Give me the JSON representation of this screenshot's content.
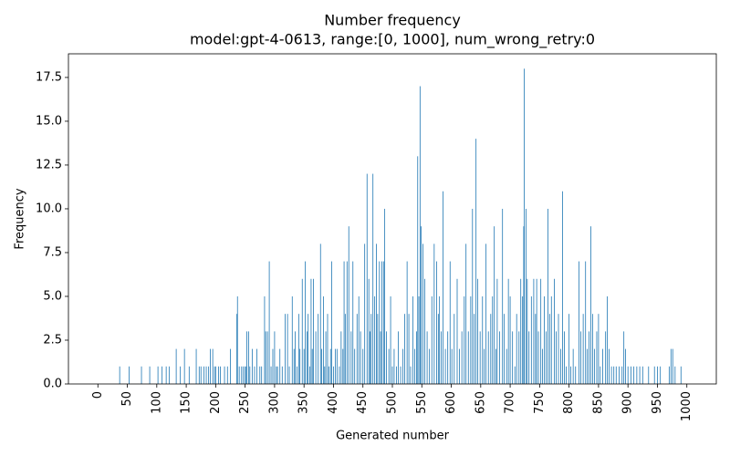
{
  "chart_data": {
    "type": "bar",
    "title": "Number frequency",
    "subtitle": "model:gpt-4-0613, range:[0, 1000], num_wrong_retry:0",
    "x_label": "Generated number",
    "y_label": "Frequency",
    "color": "#1f77b4",
    "x": [
      37,
      53,
      74,
      88,
      102,
      109,
      116,
      121,
      133,
      140,
      147,
      155,
      167,
      172,
      175,
      180,
      184,
      188,
      191,
      195,
      198,
      200,
      205,
      208,
      215,
      220,
      225,
      236,
      237,
      240,
      244,
      247,
      250,
      252,
      253,
      256,
      258,
      262,
      266,
      270,
      275,
      278,
      283,
      285,
      288,
      291,
      294,
      297,
      300,
      303,
      305,
      309,
      313,
      318,
      322,
      325,
      330,
      333,
      335,
      338,
      341,
      343,
      347,
      350,
      352,
      355,
      357,
      360,
      362,
      364,
      366,
      370,
      374,
      378,
      380,
      383,
      385,
      387,
      390,
      392,
      395,
      397,
      400,
      403,
      406,
      410,
      413,
      416,
      418,
      420,
      423,
      426,
      430,
      433,
      436,
      440,
      443,
      446,
      450,
      453,
      457,
      460,
      462,
      464,
      467,
      470,
      473,
      475,
      478,
      480,
      482,
      485,
      487,
      490,
      494,
      497,
      500,
      503,
      507,
      510,
      514,
      518,
      521,
      525,
      528,
      531,
      535,
      538,
      541,
      543,
      545,
      547,
      549,
      552,
      555,
      559,
      563,
      567,
      571,
      575,
      578,
      580,
      583,
      586,
      590,
      594,
      598,
      601,
      605,
      610,
      614,
      618,
      622,
      625,
      629,
      633,
      636,
      639,
      642,
      645,
      649,
      653,
      656,
      659,
      663,
      667,
      670,
      673,
      676,
      678,
      682,
      687,
      690,
      694,
      697,
      700,
      704,
      708,
      711,
      715,
      718,
      721,
      723,
      724,
      727,
      729,
      732,
      736,
      740,
      743,
      745,
      748,
      752,
      755,
      758,
      761,
      764,
      767,
      770,
      775,
      778,
      782,
      786,
      789,
      792,
      795,
      800,
      803,
      807,
      811,
      817,
      820,
      824,
      828,
      831,
      834,
      837,
      840,
      843,
      847,
      850,
      853,
      857,
      862,
      865,
      868,
      872,
      876,
      880,
      885,
      890,
      893,
      896,
      900,
      905,
      910,
      915,
      920,
      925,
      935,
      945,
      950,
      955,
      970,
      973,
      976,
      980,
      990
    ],
    "values": [
      1,
      1,
      1,
      1,
      1,
      1,
      1,
      1,
      2,
      1,
      2,
      1,
      2,
      1,
      1,
      1,
      1,
      1,
      2,
      2,
      1,
      1,
      1,
      1,
      1,
      1,
      2,
      4,
      5,
      1,
      1,
      1,
      1,
      1,
      3,
      3,
      1,
      2,
      1,
      2,
      1,
      1,
      5,
      3,
      3,
      7,
      1,
      2,
      3,
      1,
      1,
      2,
      1,
      4,
      4,
      1,
      5,
      2,
      3,
      1,
      4,
      2,
      6,
      2,
      7,
      3,
      4,
      1,
      6,
      2,
      6,
      3,
      4,
      8,
      2,
      5,
      1,
      3,
      4,
      1,
      2,
      7,
      1,
      2,
      2,
      1,
      3,
      2,
      7,
      4,
      7,
      9,
      3,
      7,
      2,
      4,
      5,
      3,
      2,
      8,
      12,
      6,
      3,
      4,
      12,
      5,
      8,
      4,
      7,
      3,
      7,
      7,
      10,
      3,
      2,
      5,
      1,
      2,
      1,
      3,
      1,
      2,
      4,
      7,
      4,
      1,
      5,
      2,
      3,
      13,
      5,
      17,
      9,
      8,
      6,
      3,
      2,
      5,
      8,
      7,
      4,
      5,
      3,
      11,
      2,
      3,
      7,
      2,
      4,
      6,
      2,
      3,
      5,
      8,
      3,
      5,
      10,
      4,
      14,
      6,
      3,
      5,
      2,
      8,
      3,
      4,
      5,
      9,
      2,
      6,
      3,
      10,
      4,
      2,
      6,
      5,
      3,
      1,
      4,
      3,
      6,
      5,
      9,
      18,
      10,
      6,
      3,
      5,
      6,
      4,
      6,
      3,
      6,
      2,
      5,
      3,
      10,
      4,
      5,
      6,
      3,
      4,
      2,
      11,
      3,
      1,
      4,
      1,
      2,
      1,
      7,
      3,
      4,
      7,
      2,
      3,
      9,
      4,
      2,
      3,
      4,
      1,
      2,
      3,
      5,
      2,
      1,
      1,
      1,
      1,
      1,
      3,
      2,
      1,
      1,
      1,
      1,
      1,
      1,
      1,
      1,
      1,
      1,
      1,
      2,
      2,
      1,
      1
    ],
    "xlim": [
      -50,
      1050
    ],
    "xticks": [
      0,
      50,
      100,
      150,
      200,
      250,
      300,
      350,
      400,
      450,
      500,
      550,
      600,
      650,
      700,
      750,
      800,
      850,
      900,
      950,
      1000
    ],
    "ylim": [
      0,
      18.85
    ],
    "yticks": [
      {
        "value": 0,
        "label": "0.0"
      },
      2.5,
      {
        "value": 5,
        "label": "5.0"
      },
      7.5,
      {
        "value": 10,
        "label": "10.0"
      },
      12.5,
      {
        "value": 15,
        "label": "15.0"
      },
      17.5
    ]
  }
}
